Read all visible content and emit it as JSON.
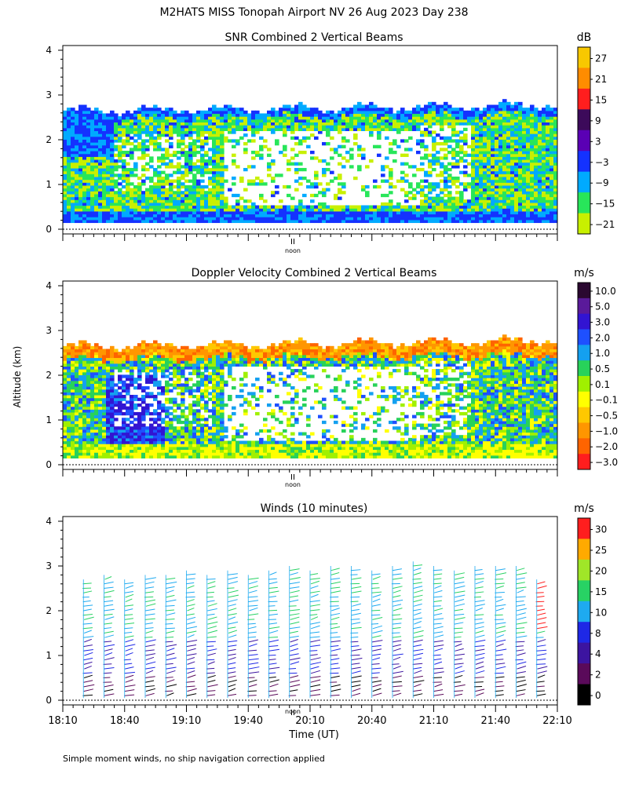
{
  "title": "M2HATS MISS Tonopah Airport NV  26 Aug 2023 Day 238",
  "ylabel": "Altitude (km)",
  "xlabel": "Time (UT)",
  "footnote": "Simple moment winds, no ship navigation correction applied",
  "noon_label": "noon",
  "x_ticks": [
    "18:10",
    "18:40",
    "19:10",
    "19:40",
    "20:10",
    "20:40",
    "21:10",
    "21:40",
    "22:10"
  ],
  "y_ticks": [
    "0",
    "1",
    "2",
    "3",
    "4"
  ],
  "panels": {
    "snr": {
      "title": "SNR Combined 2 Vertical Beams",
      "unit": "dB",
      "colorbar_labels": [
        "27",
        "21",
        "15",
        "9",
        "3",
        "−3",
        "−9",
        "−15",
        "−21"
      ],
      "colorbar_colors": [
        "#f8c800",
        "#ff8c00",
        "#ff1e1e",
        "#3c0a5a",
        "#5a00b4",
        "#1432ff",
        "#00aaff",
        "#28e65a",
        "#c8f000"
      ]
    },
    "doppler": {
      "title": "Doppler Velocity Combined 2 Vertical Beams",
      "unit": "m/s",
      "colorbar_labels": [
        "10.0",
        "5.0",
        "3.0",
        "2.0",
        "1.0",
        "0.5",
        "0.1",
        "−0.1",
        "−0.5",
        "−1.0",
        "−2.0",
        "−3.0"
      ],
      "colorbar_colors": [
        "#2a0830",
        "#5a1a9a",
        "#3214d2",
        "#1e50ff",
        "#14a0f0",
        "#28d25a",
        "#a0f000",
        "#ffff00",
        "#ffc800",
        "#ff9600",
        "#ff6400",
        "#ff1e1e"
      ]
    },
    "winds": {
      "title": "Winds (10 minutes)",
      "unit": "m/s",
      "colorbar_labels": [
        "30",
        "25",
        "20",
        "15",
        "10",
        "8",
        "4",
        "2",
        "0"
      ],
      "colorbar_colors": [
        "#ff1e1e",
        "#ffaa00",
        "#a0e628",
        "#28d264",
        "#1eaaf0",
        "#1e28e6",
        "#3c14a0",
        "#5a0a5a",
        "#000000"
      ]
    }
  },
  "chart_data": [
    {
      "type": "heatmap",
      "title": "SNR Combined 2 Vertical Beams",
      "xlabel": "",
      "ylabel": "Altitude (km)",
      "xlim": [
        "18:10",
        "22:10"
      ],
      "ylim": [
        0,
        4
      ],
      "colorbar_unit": "dB",
      "colorbar_ticks": [
        27,
        21,
        15,
        9,
        3,
        -3,
        -9,
        -15,
        -21
      ]
    },
    {
      "type": "heatmap",
      "title": "Doppler Velocity Combined 2 Vertical Beams",
      "xlabel": "",
      "ylabel": "Altitude (km)",
      "xlim": [
        "18:10",
        "22:10"
      ],
      "ylim": [
        0,
        4
      ],
      "colorbar_unit": "m/s",
      "colorbar_ticks": [
        10.0,
        5.0,
        3.0,
        2.0,
        1.0,
        0.5,
        0.1,
        -0.1,
        -0.5,
        -1.0,
        -2.0,
        -3.0
      ]
    },
    {
      "type": "scatter",
      "title": "Winds (10 minutes)",
      "xlabel": "Time (UT)",
      "ylabel": "Altitude (km)",
      "xlim": [
        "18:10",
        "22:10"
      ],
      "ylim": [
        0,
        4
      ],
      "colorbar_unit": "m/s",
      "colorbar_ticks": [
        30,
        25,
        20,
        15,
        10,
        8,
        4,
        2,
        0
      ],
      "x": [
        "18:20",
        "18:30",
        "18:40",
        "18:50",
        "19:00",
        "19:10",
        "19:20",
        "19:30",
        "19:40",
        "19:50",
        "20:00",
        "20:10",
        "20:20",
        "20:30",
        "20:40",
        "20:50",
        "21:00",
        "21:10",
        "21:20",
        "21:30",
        "21:40",
        "21:50",
        "22:00"
      ],
      "top_altitude_km": [
        2.7,
        2.8,
        2.7,
        2.8,
        2.8,
        2.9,
        2.8,
        2.9,
        2.8,
        2.9,
        3.0,
        2.9,
        3.0,
        3.0,
        2.9,
        3.0,
        3.1,
        3.0,
        2.9,
        3.0,
        3.0,
        3.0,
        2.7
      ]
    }
  ]
}
